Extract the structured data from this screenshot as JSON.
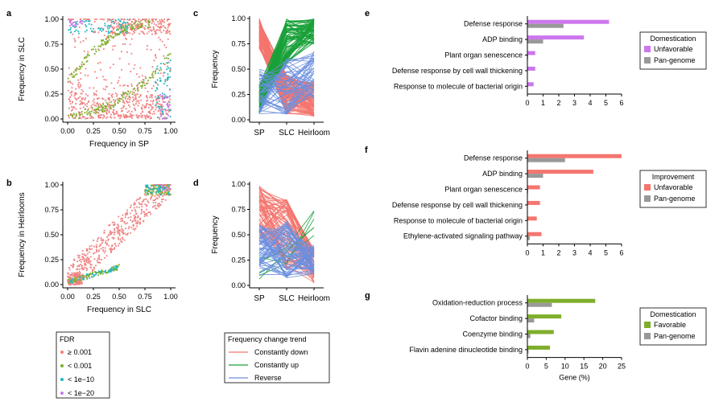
{
  "figure": {
    "panel_letters": [
      "a",
      "b",
      "c",
      "d",
      "e",
      "f",
      "g"
    ]
  },
  "colors": {
    "fdr": [
      "#f08080",
      "#7fae2a",
      "#20b8c0",
      "#c77ae8"
    ],
    "trend": [
      "#f4766f",
      "#1aa13a",
      "#6a8fe0"
    ],
    "unfavorable_dom": "#cc77ee",
    "unfavorable_imp": "#f4766f",
    "favorable": "#7fae2a",
    "pangenome": "#999999"
  },
  "legends": {
    "fdr": {
      "title": "FDR",
      "items": [
        "≥ 0.001",
        "< 0.001",
        "< 1e−10",
        "< 1e−20"
      ]
    },
    "trend": {
      "title": "Frequency change trend",
      "items": [
        "Constantly down",
        "Constantly up",
        "Reverse"
      ]
    }
  },
  "chart_data": [
    {
      "panel": "a",
      "type": "scatter",
      "xlabel": "Frequency in SP",
      "ylabel": "Frequency in SLC",
      "xlim": [
        0,
        1
      ],
      "ylim": [
        0,
        1
      ],
      "xticks": [
        "0.00",
        "0.25",
        "0.50",
        "0.75",
        "1.00"
      ],
      "yticks": [
        "0.00",
        "0.25",
        "0.50",
        "0.75",
        "1.00"
      ],
      "groups": [
        {
          "name": "≥ 0.001",
          "n": 800,
          "pattern": "spread"
        },
        {
          "name": "< 0.001",
          "n": 260,
          "pattern": "bands"
        },
        {
          "name": "< 1e−10",
          "n": 140,
          "pattern": "bands-outer"
        },
        {
          "name": "< 1e−20",
          "n": 50,
          "pattern": "corners"
        }
      ]
    },
    {
      "panel": "b",
      "type": "scatter",
      "xlabel": "Frequency in SLC",
      "ylabel": "Frequency in Heirlooms",
      "xlim": [
        0,
        1
      ],
      "ylim": [
        0,
        1
      ],
      "xticks": [
        "0.00",
        "0.25",
        "0.50",
        "0.75",
        "1.00"
      ],
      "yticks": [
        "0.00",
        "0.25",
        "0.50",
        "0.75",
        "1.00"
      ],
      "groups": [
        {
          "name": "≥ 0.001",
          "n": 600,
          "pattern": "diagonal"
        },
        {
          "name": "< 0.001",
          "n": 160,
          "pattern": "diagonal-ends"
        },
        {
          "name": "< 1e−10",
          "n": 90,
          "pattern": "diagonal-ends"
        },
        {
          "name": "< 1e−20",
          "n": 10,
          "pattern": "top-right"
        }
      ]
    },
    {
      "panel": "c",
      "type": "line",
      "xlabel": "",
      "ylabel": "Frequency",
      "categories": [
        "SP",
        "SLC",
        "Heirloom"
      ],
      "ylim": [
        0,
        1
      ],
      "yticks": [
        "0.00",
        "0.25",
        "0.50",
        "0.75",
        "1.00"
      ],
      "series": [
        {
          "name": "Constantly down",
          "n": 120
        },
        {
          "name": "Constantly up",
          "n": 80
        },
        {
          "name": "Reverse",
          "n": 45
        }
      ]
    },
    {
      "panel": "d",
      "type": "line",
      "xlabel": "",
      "ylabel": "Frequency",
      "categories": [
        "SP",
        "SLC",
        "Heirloom"
      ],
      "ylim": [
        0,
        1
      ],
      "yticks": [
        "0.00",
        "0.25",
        "0.50",
        "0.75",
        "1.00"
      ],
      "series": [
        {
          "name": "Constantly down",
          "n": 70
        },
        {
          "name": "Constantly up",
          "n": 6
        },
        {
          "name": "Reverse",
          "n": 60
        }
      ]
    },
    {
      "panel": "e",
      "type": "bar",
      "orientation": "horizontal",
      "categories": [
        "Defense response",
        "ADP binding",
        "Plant organ senescence",
        "Defense response by cell wall thickening",
        "Response to molecule of bacterial origin"
      ],
      "series": [
        {
          "name": "Unfavorable",
          "values": [
            5.2,
            3.6,
            0.5,
            0.5,
            0.4
          ]
        },
        {
          "name": "Pan-genome",
          "values": [
            2.3,
            1.0,
            0.05,
            0.03,
            0.03
          ]
        }
      ],
      "xlim": [
        0,
        6
      ],
      "xticks": [
        "0",
        "1",
        "2",
        "3",
        "4",
        "5",
        "6"
      ],
      "legend": {
        "title": "Domestication",
        "items": [
          "Unfavorable",
          "Pan-genome"
        ]
      }
    },
    {
      "panel": "f",
      "type": "bar",
      "orientation": "horizontal",
      "categories": [
        "Defense response",
        "ADP binding",
        "Plant organ senescence",
        "Defense response by cell wall thickening",
        "Response to molecule of bacterial origin",
        "Ethylene-activated signaling pathway"
      ],
      "series": [
        {
          "name": "Unfavorable",
          "values": [
            6.0,
            4.2,
            0.8,
            0.8,
            0.6,
            0.9
          ]
        },
        {
          "name": "Pan-genome",
          "values": [
            2.4,
            1.0,
            0.05,
            0.03,
            0.03,
            0.15
          ]
        }
      ],
      "xlim": [
        0,
        6
      ],
      "xticks": [
        "0",
        "1",
        "2",
        "3",
        "4",
        "5",
        "6"
      ],
      "legend": {
        "title": "Improvement",
        "items": [
          "Unfavorable",
          "Pan-genome"
        ]
      }
    },
    {
      "panel": "g",
      "type": "bar",
      "orientation": "horizontal",
      "categories": [
        "Oxidation-reduction process",
        "Cofactor binding",
        "Coenzyme binding",
        "Flavin adenine dinucleotide binding"
      ],
      "series": [
        {
          "name": "Favorable",
          "values": [
            18,
            9,
            7,
            6
          ]
        },
        {
          "name": "Pan-genome",
          "values": [
            6.5,
            1.8,
            0.8,
            0.3
          ]
        }
      ],
      "xlim": [
        0,
        25
      ],
      "xticks": [
        "0",
        "5",
        "10",
        "15",
        "20",
        "25"
      ],
      "xlabel": "Gene (%)",
      "legend": {
        "title": "Domestication",
        "items": [
          "Favorable",
          "Pan-genome"
        ]
      }
    }
  ]
}
